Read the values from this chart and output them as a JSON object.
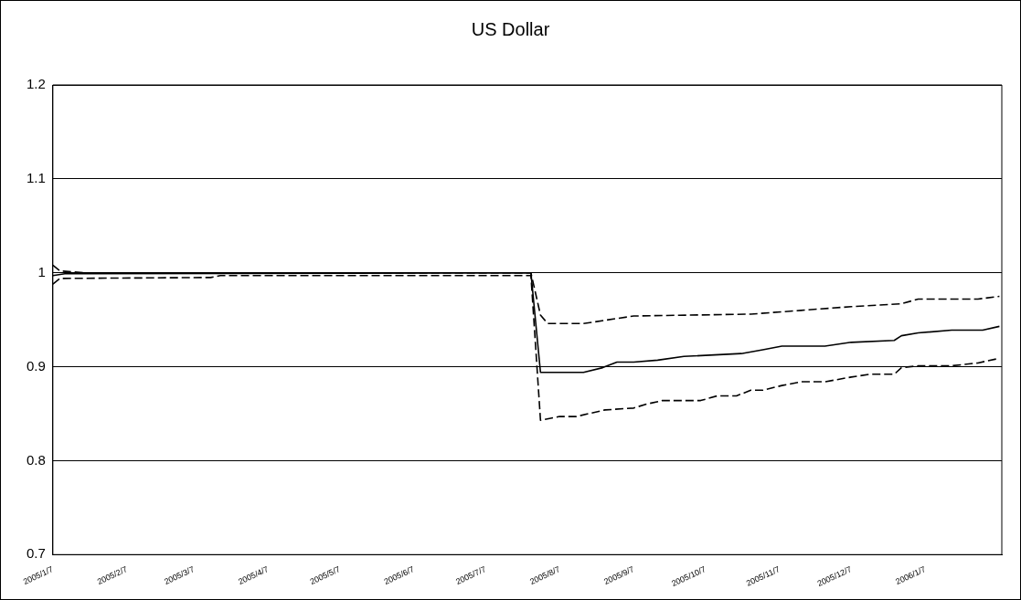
{
  "chart_data": {
    "type": "line",
    "title": "US Dollar",
    "xlim": [
      "2005-01-07",
      "2006-02-08"
    ],
    "xticks": [
      {
        "value": "2005-01-07",
        "label": "2005/1/7"
      },
      {
        "value": "2005-02-07",
        "label": "2005/2/7"
      },
      {
        "value": "2005-03-07",
        "label": "2005/3/7"
      },
      {
        "value": "2005-04-07",
        "label": "2005/4/7"
      },
      {
        "value": "2005-05-07",
        "label": "2005/5/7"
      },
      {
        "value": "2005-06-07",
        "label": "2005/6/7"
      },
      {
        "value": "2005-07-07",
        "label": "2005/7/7"
      },
      {
        "value": "2005-08-07",
        "label": "2005/8/7"
      },
      {
        "value": "2005-09-07",
        "label": "2005/9/7"
      },
      {
        "value": "2005-10-07",
        "label": "2005/10/7"
      },
      {
        "value": "2005-11-07",
        "label": "2005/11/7"
      },
      {
        "value": "2005-12-07",
        "label": "2005/12/7"
      },
      {
        "value": "2006-01-07",
        "label": "2006/1/7"
      }
    ],
    "ylim": [
      0.7,
      1.2
    ],
    "yticks": [
      0.7,
      0.8,
      0.9,
      1,
      1.1,
      1.2
    ],
    "grid": "y",
    "legend": false,
    "marker": "none",
    "series": [
      {
        "color": "#000000",
        "line_style": "solid",
        "x": [
          "2005-01-07",
          "2005-01-12",
          "2005-07-26",
          "2005-07-30",
          "2005-08-17",
          "2005-08-25",
          "2005-08-31",
          "2005-09-07",
          "2005-09-17",
          "2005-09-28",
          "2005-10-22",
          "2005-10-31",
          "2005-11-08",
          "2005-11-26",
          "2005-12-07",
          "2005-12-25",
          "2005-12-28",
          "2006-01-04",
          "2006-01-18",
          "2006-01-31",
          "2006-02-07"
        ],
        "values": [
          0.997,
          0.999,
          1.0,
          0.894,
          0.894,
          0.899,
          0.905,
          0.905,
          0.907,
          0.911,
          0.914,
          0.918,
          0.922,
          0.922,
          0.926,
          0.928,
          0.933,
          0.936,
          0.939,
          0.939,
          0.943
        ]
      },
      {
        "color": "#000000",
        "line_style": "dashed",
        "x": [
          "2005-01-07",
          "2005-01-10",
          "2005-01-20",
          "2005-07-26",
          "2005-07-30",
          "2005-08-02",
          "2005-08-17",
          "2005-09-07",
          "2005-10-26",
          "2005-11-16",
          "2005-12-07",
          "2005-12-28",
          "2006-01-04",
          "2006-01-29",
          "2006-02-07"
        ],
        "values": [
          1.008,
          1.002,
          1.0,
          1.0,
          0.955,
          0.946,
          0.946,
          0.954,
          0.956,
          0.96,
          0.964,
          0.967,
          0.972,
          0.972,
          0.975
        ]
      },
      {
        "color": "#000000",
        "line_style": "dashed",
        "x": [
          "2005-01-07",
          "2005-01-10",
          "2005-03-14",
          "2005-03-18",
          "2005-07-26",
          "2005-07-30",
          "2005-08-07",
          "2005-08-14",
          "2005-08-19",
          "2005-08-26",
          "2005-09-07",
          "2005-09-12",
          "2005-09-19",
          "2005-10-05",
          "2005-10-12",
          "2005-10-20",
          "2005-10-26",
          "2005-10-31",
          "2005-11-08",
          "2005-11-16",
          "2005-11-26",
          "2005-12-07",
          "2005-12-15",
          "2005-12-25",
          "2005-12-28",
          "2006-01-04",
          "2006-01-18",
          "2006-01-29",
          "2006-02-07"
        ],
        "values": [
          0.988,
          0.994,
          0.995,
          0.997,
          0.997,
          0.843,
          0.847,
          0.847,
          0.85,
          0.854,
          0.856,
          0.86,
          0.864,
          0.864,
          0.869,
          0.869,
          0.875,
          0.875,
          0.88,
          0.884,
          0.884,
          0.889,
          0.892,
          0.892,
          0.899,
          0.901,
          0.901,
          0.904,
          0.909
        ]
      }
    ]
  }
}
